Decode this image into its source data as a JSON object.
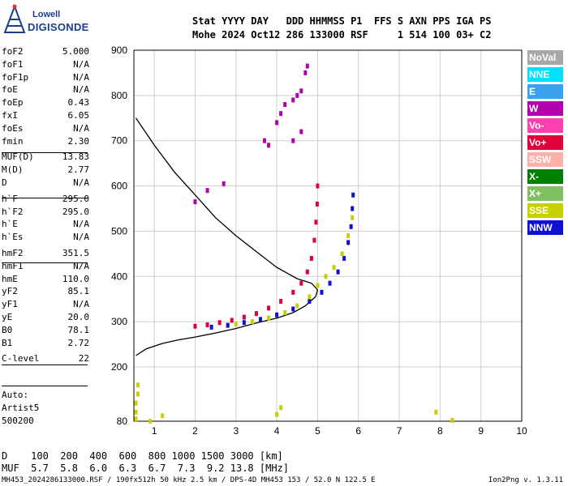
{
  "logo": {
    "line1": "Lowell",
    "line2": "DIGISONDE"
  },
  "header": {
    "row1": "Stat YYYY DAY   DDD HHMMSS P1  FFS S AXN PPS IGA PS",
    "row2": "Mohe 2024 Oct12 286 133000 RSF     1 514 100 03+ C2"
  },
  "params": [
    {
      "label": "foF2",
      "value": "5.000"
    },
    {
      "label": "foF1",
      "value": "N/A"
    },
    {
      "label": "foF1p",
      "value": "N/A"
    },
    {
      "label": "foE",
      "value": "N/A"
    },
    {
      "label": "foEp",
      "value": "0.43"
    },
    {
      "label": "fxI",
      "value": "6.05"
    },
    {
      "label": "foEs",
      "value": "N/A"
    },
    {
      "label": "fmin",
      "value": "2.30"
    },
    {
      "label": "MUF(D)",
      "value": "13.83"
    },
    {
      "label": "M(D)",
      "value": "2.77"
    },
    {
      "label": "D",
      "value": "N/A"
    },
    {
      "label": "h`F",
      "value": "295.0"
    },
    {
      "label": "h`F2",
      "value": "295.0"
    },
    {
      "label": "h`E",
      "value": "N/A"
    },
    {
      "label": "h`Es",
      "value": "N/A"
    },
    {
      "label": "hmF2",
      "value": "351.5"
    },
    {
      "label": "hmF1",
      "value": "N/A"
    },
    {
      "label": "hmE",
      "value": "110.0"
    },
    {
      "label": "yF2",
      "value": "85.1"
    },
    {
      "label": "yF1",
      "value": "N/A"
    },
    {
      "label": "yE",
      "value": "20.0"
    },
    {
      "label": "B0",
      "value": "78.1"
    },
    {
      "label": "B1",
      "value": "2.72"
    },
    {
      "label": "C-level",
      "value": "22"
    }
  ],
  "auto": {
    "line1": "Auto:",
    "line2": "Artist5",
    "line3": "500200"
  },
  "freq_table": {
    "d_row": "D    100  200  400  600  800 1000 1500 3000 [km]",
    "muf_row": "MUF  5.7  5.8  6.0  6.3  6.7  7.3  9.2 13.8 [MHz]"
  },
  "footer": {
    "left": "MH453_2024286133000.RSF / 190fx512h 50 kHz 2.5 km / DPS-4D MH453 153 / 52.0 N 122.5 E",
    "right": "Ion2Png v. 1.3.11"
  },
  "legend": [
    {
      "label": "NoVal",
      "color": "#a8a8a8"
    },
    {
      "label": "NNE",
      "color": "#00e0ff"
    },
    {
      "label": "E",
      "color": "#3aa0f0"
    },
    {
      "label": "W",
      "color": "#b000b0"
    },
    {
      "label": "Vo-",
      "color": "#ff40b0"
    },
    {
      "label": "Vo+",
      "color": "#e0003a"
    },
    {
      "label": "SSW",
      "color": "#ffb0a8"
    },
    {
      "label": "X-",
      "color": "#008000"
    },
    {
      "label": "X+",
      "color": "#80c060"
    },
    {
      "label": "SSE",
      "color": "#c8d000"
    },
    {
      "label": "NNW",
      "color": "#1010d0"
    }
  ],
  "chart_data": {
    "type": "scatter",
    "xlabel": "",
    "ylabel": "",
    "xlim": [
      0.5,
      10
    ],
    "ylim": [
      80,
      900
    ],
    "x_ticks": [
      1,
      2,
      3,
      4,
      5,
      6,
      7,
      8,
      9,
      10
    ],
    "y_ticks": [
      80,
      200,
      300,
      400,
      500,
      600,
      700,
      800,
      900
    ],
    "grid": true,
    "legend_placement": "right",
    "profile_curve": [
      [
        0.55,
        225
      ],
      [
        0.8,
        240
      ],
      [
        1.2,
        252
      ],
      [
        1.6,
        260
      ],
      [
        2.0,
        266
      ],
      [
        2.5,
        275
      ],
      [
        3.0,
        285
      ],
      [
        3.5,
        297
      ],
      [
        4.0,
        308
      ],
      [
        4.4,
        320
      ],
      [
        4.7,
        335
      ],
      [
        4.95,
        355
      ],
      [
        5.0,
        370
      ],
      [
        4.85,
        385
      ],
      [
        4.5,
        395
      ],
      [
        4.0,
        420
      ],
      [
        3.5,
        455
      ],
      [
        3.0,
        490
      ],
      [
        2.5,
        530
      ],
      [
        2.0,
        580
      ],
      [
        1.5,
        630
      ],
      [
        1.0,
        690
      ],
      [
        0.55,
        750
      ]
    ],
    "traces": [
      {
        "name": "F2 O-trace",
        "color": "#e0003a",
        "points": [
          [
            2.0,
            290
          ],
          [
            2.3,
            293
          ],
          [
            2.6,
            298
          ],
          [
            2.9,
            303
          ],
          [
            3.2,
            310
          ],
          [
            3.5,
            318
          ],
          [
            3.8,
            330
          ],
          [
            4.1,
            345
          ],
          [
            4.4,
            365
          ],
          [
            4.6,
            385
          ],
          [
            4.75,
            410
          ],
          [
            4.85,
            440
          ],
          [
            4.92,
            480
          ],
          [
            4.96,
            520
          ],
          [
            4.99,
            560
          ],
          [
            5.0,
            600
          ]
        ]
      },
      {
        "name": "F2 X-trace",
        "color": "#1010d0",
        "points": [
          [
            2.4,
            288
          ],
          [
            2.8,
            292
          ],
          [
            3.2,
            298
          ],
          [
            3.6,
            305
          ],
          [
            4.0,
            315
          ],
          [
            4.4,
            328
          ],
          [
            4.8,
            345
          ],
          [
            5.1,
            365
          ],
          [
            5.3,
            385
          ],
          [
            5.5,
            410
          ],
          [
            5.65,
            440
          ],
          [
            5.75,
            475
          ],
          [
            5.82,
            510
          ],
          [
            5.85,
            550
          ],
          [
            5.87,
            580
          ]
        ]
      },
      {
        "name": "F2 spread",
        "color": "#c8d000",
        "points": [
          [
            3.0,
            295
          ],
          [
            3.4,
            300
          ],
          [
            3.8,
            308
          ],
          [
            4.2,
            320
          ],
          [
            4.5,
            335
          ],
          [
            4.8,
            355
          ],
          [
            5.0,
            380
          ],
          [
            5.2,
            400
          ],
          [
            5.4,
            420
          ],
          [
            5.6,
            450
          ],
          [
            5.75,
            490
          ],
          [
            5.85,
            530
          ]
        ]
      },
      {
        "name": "Oblique echoes",
        "color": "#b000b0",
        "points": [
          [
            3.7,
            700
          ],
          [
            3.8,
            690
          ],
          [
            4.0,
            740
          ],
          [
            4.1,
            760
          ],
          [
            4.2,
            780
          ],
          [
            4.4,
            790
          ],
          [
            4.5,
            800
          ],
          [
            4.6,
            810
          ],
          [
            4.7,
            850
          ],
          [
            4.75,
            865
          ],
          [
            4.6,
            720
          ],
          [
            4.4,
            700
          ],
          [
            2.0,
            565
          ],
          [
            2.3,
            590
          ],
          [
            2.7,
            605
          ]
        ]
      },
      {
        "name": "Low-frequency noise",
        "color": "#c8d000",
        "points": [
          [
            0.55,
            85
          ],
          [
            0.55,
            100
          ],
          [
            0.55,
            120
          ],
          [
            0.6,
            140
          ],
          [
            0.6,
            160
          ],
          [
            4.0,
            95
          ],
          [
            4.1,
            110
          ],
          [
            8.3,
            82
          ],
          [
            7.9,
            100
          ],
          [
            1.2,
            92
          ],
          [
            0.9,
            80
          ]
        ]
      }
    ]
  }
}
